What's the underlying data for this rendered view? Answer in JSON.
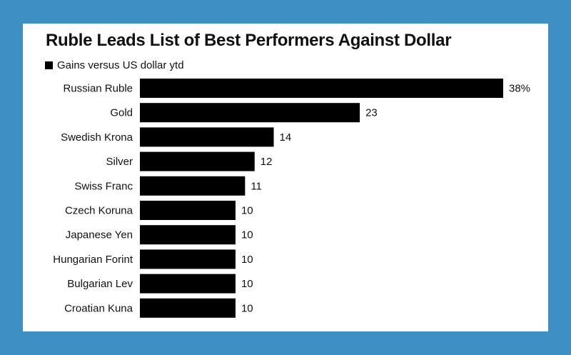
{
  "title": "Ruble Leads List of Best Performers Against Dollar",
  "legend": {
    "label": "Gains versus US dollar ytd",
    "swatch_color": "#000000"
  },
  "colors": {
    "background": "#3d8fc4",
    "card": "#ffffff",
    "bar": "#000000"
  },
  "chart_data": {
    "type": "bar",
    "orientation": "horizontal",
    "title": "Ruble Leads List of Best Performers Against Dollar",
    "series": [
      {
        "name": "Gains versus US dollar ytd",
        "values": [
          38,
          23,
          14,
          12,
          11,
          10,
          10,
          10,
          10,
          10
        ]
      }
    ],
    "categories": [
      "Russian Ruble",
      "Gold",
      "Swedish Krona",
      "Silver",
      "Swiss Franc",
      "Czech Koruna",
      "Japanese Yen",
      "Hungarian Forint",
      "Bulgarian Lev",
      "Croatian Kuna"
    ],
    "value_labels": [
      "38%",
      "23",
      "14",
      "12",
      "11",
      "10",
      "10",
      "10",
      "10",
      "10"
    ],
    "xlim": [
      0,
      38
    ],
    "unit": "%",
    "grid": false
  }
}
